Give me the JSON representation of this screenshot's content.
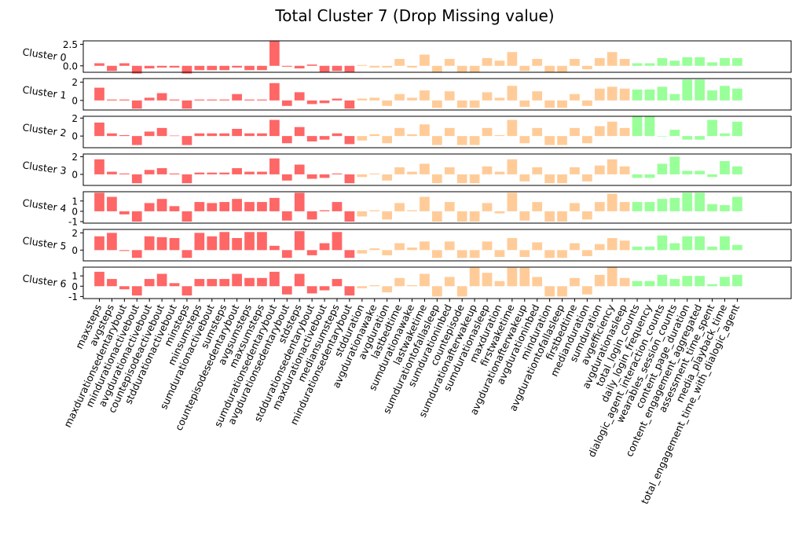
{
  "chart_data": {
    "type": "bar",
    "title": "Total Cluster 7 (Drop Missing value)",
    "categories": [
      "maxsteps",
      "avgsteps",
      "maxdurationsedentarybout",
      "mindurationactivebout",
      "avgdurationactivebout",
      "countepisodeactivebout",
      "stddurationactivebout",
      "minsteps",
      "minsumsteps",
      "sumdurationactivebout",
      "sumsteps",
      "countepisodesedentarybout",
      "avgsumsteps",
      "maxsumsteps",
      "sumdurationsedentarybout",
      "avgdurationsedentarybout",
      "stdsteps",
      "stddurationsedentarybout",
      "maxdurationactivebout",
      "mediansumsteps",
      "mindurationsedentarybout",
      "stdduration",
      "avgdurationawake",
      "avgduration",
      "lastbedtime",
      "sumdurationawake",
      "lastwaketime",
      "sumdurationtofallasleep",
      "sumdurationinbed",
      "countepisode",
      "sumdurationafterwakeup",
      "sumdurationasleep",
      "maxduration",
      "firstwaketime",
      "avgdurationafterwakeup",
      "avgdurationinbed",
      "minduration",
      "avgdurationtofallasleep",
      "firstbedtime",
      "medianduration",
      "sumduration",
      "avgefficiency",
      "avgdurationasleep",
      "total_login_counts",
      "daily_login_frequency",
      "dialogic_agent_interaction_counts",
      "wearables_session_counts",
      "content_page_duration",
      "content_engagement_aggregated",
      "assessment_time_spent",
      "media_playback_time",
      "total_engagement_time_with_dialogic_agent"
    ],
    "group_sizes": [
      21,
      22,
      9
    ],
    "group_colors": [
      "#ff6666",
      "#ffcc99",
      "#99ff99"
    ],
    "series": [
      {
        "name": "Cluster 0",
        "yticks": [
          2.5,
          0.0
        ],
        "ylim": [
          -0.75,
          2.9
        ],
        "values": [
          0.3,
          -0.6,
          0.3,
          -0.9,
          -0.3,
          -0.2,
          -0.2,
          -0.9,
          -0.5,
          -0.5,
          -0.5,
          -0.2,
          -0.5,
          -0.5,
          2.9,
          -0.1,
          -0.3,
          0.15,
          -0.7,
          -0.6,
          -0.7,
          0.1,
          -0.2,
          -0.2,
          0.8,
          -0.2,
          1.3,
          -0.8,
          0.8,
          -0.8,
          -0.8,
          0.9,
          0.6,
          1.6,
          -0.6,
          0.8,
          -0.7,
          -0.8,
          0.8,
          -0.4,
          0.9,
          1.6,
          0.8,
          0.3,
          0.3,
          0.9,
          0.6,
          1.0,
          1.0,
          0.4,
          0.9,
          0.9
        ]
      },
      {
        "name": "Cluster 1",
        "yticks": [
          2,
          0
        ],
        "ylim": [
          -1.05,
          2.4
        ],
        "values": [
          1.4,
          0.1,
          0.1,
          -0.9,
          0.3,
          0.8,
          0.1,
          -0.9,
          0.1,
          0.1,
          0.1,
          0.7,
          0.1,
          0.1,
          1.9,
          -0.6,
          0.9,
          -0.4,
          -0.3,
          0.2,
          -0.9,
          0.2,
          0.3,
          -0.6,
          0.7,
          0.3,
          1.1,
          -0.8,
          1.0,
          -0.8,
          -0.8,
          0.9,
          0.3,
          1.6,
          -0.7,
          1.0,
          -0.8,
          -0.8,
          0.7,
          -0.6,
          1.3,
          1.5,
          1.3,
          1.2,
          1.2,
          1.5,
          0.7,
          2.3,
          2.3,
          1.1,
          1.6,
          1.3
        ]
      },
      {
        "name": "Cluster 2",
        "yticks": [
          2,
          0
        ],
        "ylim": [
          -1.3,
          2.2
        ],
        "values": [
          1.5,
          0.3,
          0.1,
          -1.0,
          0.5,
          0.9,
          0.05,
          -1.0,
          0.3,
          0.3,
          0.3,
          0.8,
          0.3,
          0.3,
          1.8,
          -0.8,
          1.0,
          -0.6,
          -0.4,
          0.3,
          -0.9,
          -0.5,
          0.2,
          -0.8,
          0.9,
          0.2,
          1.3,
          -1.0,
          0.9,
          -1.0,
          -1.0,
          0.9,
          0.1,
          1.8,
          -0.8,
          0.9,
          -1.0,
          -1.0,
          0.9,
          -0.8,
          1.1,
          1.6,
          0.9,
          2.2,
          2.2,
          0.0,
          0.7,
          -0.4,
          -0.4,
          1.8,
          0.3,
          1.6
        ]
      },
      {
        "name": "Cluster 3",
        "yticks": [
          2,
          0
        ],
        "ylim": [
          -1.25,
          2.3
        ],
        "values": [
          1.7,
          0.3,
          0.1,
          -1.0,
          0.5,
          0.7,
          0.1,
          -1.0,
          0.2,
          0.2,
          0.2,
          0.7,
          0.3,
          0.3,
          1.8,
          -0.7,
          1.1,
          -0.5,
          -0.4,
          0.1,
          -1.0,
          -0.3,
          0.1,
          -0.7,
          0.8,
          0.3,
          1.2,
          -1.0,
          0.8,
          -1.0,
          -1.0,
          0.9,
          0.3,
          1.7,
          -0.8,
          0.8,
          -1.0,
          -1.0,
          0.8,
          -0.8,
          1.0,
          1.7,
          0.9,
          -0.4,
          -0.4,
          1.2,
          2.0,
          0.4,
          0.4,
          -0.3,
          1.5,
          0.9
        ]
      },
      {
        "name": "Cluster 4",
        "yticks": [
          1,
          0,
          -1
        ],
        "ylim": [
          -1.15,
          1.9
        ],
        "values": [
          1.8,
          1.4,
          -0.3,
          -1.0,
          0.8,
          1.2,
          0.5,
          -1.0,
          0.9,
          0.8,
          0.9,
          1.2,
          0.9,
          0.9,
          1.3,
          -0.9,
          1.8,
          -0.8,
          0.1,
          0.9,
          -1.0,
          -0.5,
          0.1,
          -0.8,
          0.8,
          0.1,
          1.4,
          -1.0,
          0.9,
          -1.0,
          -1.0,
          0.8,
          -0.2,
          1.8,
          -0.9,
          0.9,
          -1.0,
          -1.0,
          0.8,
          -0.8,
          0.9,
          1.7,
          0.9,
          0.9,
          0.9,
          1.2,
          1.3,
          1.8,
          1.8,
          0.7,
          0.6,
          1.4
        ]
      },
      {
        "name": "Cluster 5",
        "yticks": [
          2,
          0
        ],
        "ylim": [
          -1.25,
          2.4
        ],
        "values": [
          1.6,
          2.0,
          -0.1,
          -0.9,
          1.6,
          1.5,
          1.4,
          -0.9,
          2.0,
          1.6,
          2.1,
          1.4,
          2.1,
          2.1,
          0.5,
          -0.9,
          2.2,
          -0.6,
          0.8,
          2.1,
          -0.9,
          -0.4,
          0.2,
          -0.6,
          0.8,
          0.3,
          1.0,
          -0.9,
          1.0,
          -0.9,
          -0.9,
          1.0,
          -0.8,
          1.4,
          -0.8,
          0.9,
          -0.9,
          -0.9,
          0.8,
          -0.7,
          0.7,
          1.4,
          1.1,
          0.4,
          0.4,
          1.7,
          0.8,
          1.6,
          1.6,
          0.4,
          1.6,
          0.6
        ]
      },
      {
        "name": "Cluster 6",
        "yticks": [
          1,
          0,
          -1
        ],
        "ylim": [
          -1.2,
          1.85
        ],
        "values": [
          1.4,
          0.7,
          -0.3,
          -0.9,
          0.7,
          1.2,
          0.3,
          -0.9,
          0.7,
          0.7,
          0.7,
          1.2,
          0.8,
          0.8,
          1.4,
          -0.8,
          1.2,
          -0.7,
          -0.4,
          0.7,
          -0.9,
          -0.2,
          0.1,
          -0.6,
          0.8,
          0.1,
          1.2,
          -1.0,
          0.9,
          -1.0,
          1.8,
          1.3,
          0.5,
          1.8,
          1.8,
          0.9,
          -1.0,
          -1.0,
          0.8,
          -0.8,
          1.1,
          1.9,
          0.8,
          0.5,
          0.5,
          1.1,
          0.7,
          1.0,
          1.0,
          0.2,
          0.9,
          1.1
        ]
      }
    ]
  }
}
